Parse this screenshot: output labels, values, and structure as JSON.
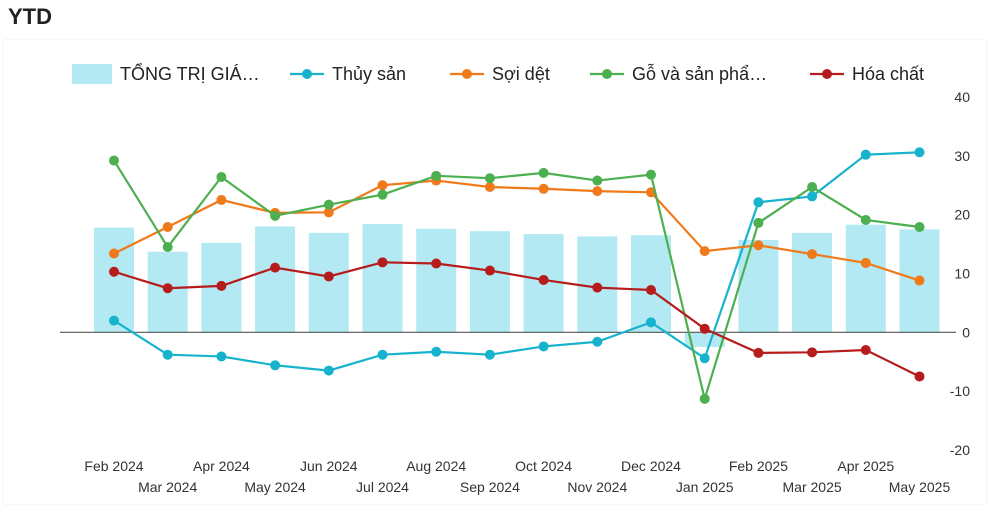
{
  "header": {
    "title": "YTD"
  },
  "chart_data": {
    "type": "bar",
    "title": "",
    "xlabel": "",
    "ylabel": "",
    "ylim": [
      -20,
      40
    ],
    "yticks": [
      -20,
      -10,
      0,
      10,
      20,
      30,
      40
    ],
    "grid": false,
    "legend_position": "top",
    "categories": [
      "Feb 2024",
      "Mar 2024",
      "Apr 2024",
      "May 2024",
      "Jun 2024",
      "Jul 2024",
      "Aug 2024",
      "Sep 2024",
      "Oct 2024",
      "Nov 2024",
      "Dec 2024",
      "Jan 2025",
      "Feb 2025",
      "Mar 2025",
      "Apr 2025",
      "May 2025"
    ],
    "series": [
      {
        "name": "TỔNG TRỊ GIÁ…",
        "kind": "bar",
        "color": "#b3e9f2",
        "values": [
          17.8,
          13.7,
          15.2,
          18.0,
          16.9,
          18.4,
          17.6,
          17.2,
          16.7,
          16.3,
          16.5,
          -2.5,
          15.7,
          16.9,
          18.3,
          17.5
        ]
      },
      {
        "name": "Thủy sản",
        "kind": "line",
        "color": "#17b3cc",
        "values": [
          2.0,
          -3.8,
          -4.1,
          -5.6,
          -6.5,
          -3.8,
          -3.3,
          -3.8,
          -2.4,
          -1.6,
          1.7,
          -4.4,
          22.1,
          23.1,
          30.2,
          30.6
        ]
      },
      {
        "name": "Sợi dệt",
        "kind": "line",
        "color": "#f07a1a",
        "values": [
          13.4,
          17.9,
          22.5,
          20.3,
          20.4,
          25.0,
          25.8,
          24.7,
          24.4,
          24.0,
          23.8,
          13.8,
          14.8,
          13.3,
          11.8,
          8.8
        ]
      },
      {
        "name": "Gỗ và sản phẩ…",
        "kind": "line",
        "color": "#4caf50",
        "values": [
          29.2,
          14.5,
          26.4,
          19.8,
          21.7,
          23.4,
          26.6,
          26.2,
          27.1,
          25.8,
          26.8,
          -11.3,
          18.6,
          24.7,
          19.1,
          17.9
        ]
      },
      {
        "name": "Hóa chất",
        "kind": "line",
        "color": "#b71c1c",
        "values": [
          10.3,
          7.5,
          7.9,
          11.0,
          9.5,
          11.9,
          11.7,
          10.5,
          8.9,
          7.6,
          7.2,
          0.6,
          -3.5,
          -3.4,
          -3.0,
          -7.5
        ]
      }
    ]
  }
}
